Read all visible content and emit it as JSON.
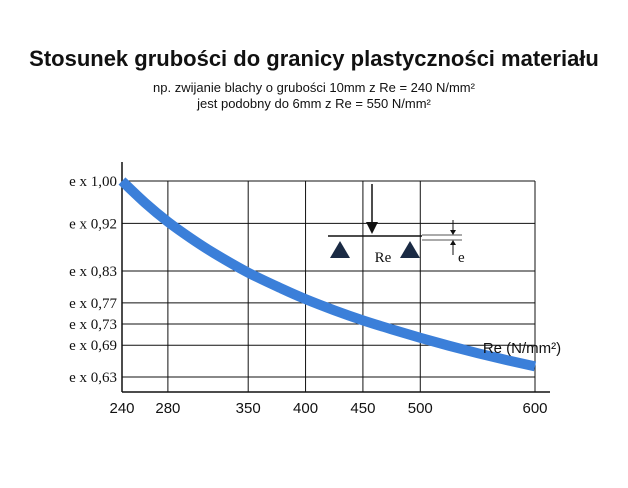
{
  "chart_data": {
    "type": "line",
    "title": "Stosunek grubości do granicy plastyczności materiału",
    "subtitle_lines": [
      "np. zwijanie blachy o grubości 10mm z Re = 240 N/mm²",
      "jest podobny do 6mm z Re = 550 N/mm²"
    ],
    "xlabel": "Re (N/mm²)",
    "x_ticks": [
      240,
      280,
      350,
      400,
      450,
      500,
      600
    ],
    "x_tick_labels": [
      "240",
      "280",
      "350",
      "400",
      "450",
      "500",
      "600"
    ],
    "y_ticks": [
      1.0,
      0.92,
      0.83,
      0.77,
      0.73,
      0.69,
      0.63
    ],
    "y_tick_labels": [
      "e x 1,00",
      "e x 0,92",
      "e x 0,83",
      "e x 0,77",
      "e x 0,73",
      "e x 0,69",
      "e x 0,63"
    ],
    "xlim": [
      240,
      610
    ],
    "ylim": [
      0.605,
      1.02
    ],
    "grid": true,
    "series": [
      {
        "x": [
          240,
          260,
          280,
          300,
          320,
          350,
          380,
          400,
          425,
          450,
          475,
          500,
          525,
          550,
          575,
          600
        ],
        "values": [
          1.0,
          0.959,
          0.923,
          0.892,
          0.864,
          0.827,
          0.796,
          0.777,
          0.756,
          0.737,
          0.72,
          0.704,
          0.689,
          0.675,
          0.662,
          0.65
        ]
      }
    ],
    "colors": {
      "curve": "#3b7fd9",
      "grid": "#111111",
      "axis": "#111111",
      "triangle": "#1a2a44"
    },
    "inset": {
      "force_label": "Re",
      "thickness_label": "e"
    }
  }
}
